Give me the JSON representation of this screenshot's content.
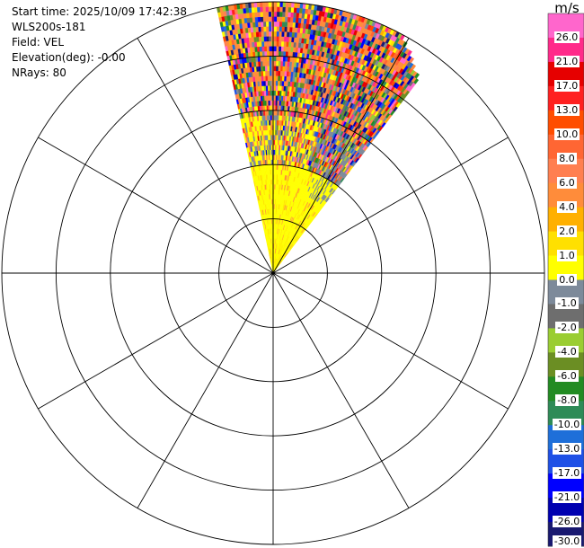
{
  "header": {
    "start_time": "Start time: 2025/10/09 17:42:38",
    "instrument": "WLS200s-181",
    "field": "Field: VEL",
    "elevation": "Elevation(deg): -0.00",
    "nrays": "NRays: 80"
  },
  "colorbar": {
    "unit": "m/s",
    "labels": [
      "26.0",
      "21.0",
      "17.0",
      "13.0",
      "10.0",
      "8.0",
      "6.0",
      "4.0",
      "2.0",
      "1.0",
      "0.0",
      "-1.0",
      "-2.0",
      "-4.0",
      "-6.0",
      "-8.0",
      "-10.0",
      "-13.0",
      "-17.0",
      "-21.0",
      "-26.0",
      "-30.0"
    ],
    "colors": [
      "#ff66cc",
      "#ff2a8a",
      "#e60000",
      "#ff2020",
      "#ff4d00",
      "#ff6633",
      "#ff7f50",
      "#ff8c3a",
      "#ffb000",
      "#ffe000",
      "#ffff00",
      "#7d8a9a",
      "#6e6e6e",
      "#9acd32",
      "#6b8e23",
      "#228b22",
      "#2e8b57",
      "#1e6fd9",
      "#1e50e6",
      "#0000ff",
      "#0000b0",
      "#191970"
    ]
  },
  "chart_data": {
    "type": "heatmap",
    "plot_kind": "PPI polar scan",
    "field": "VEL",
    "units": "m/s",
    "nrays": 80,
    "elevation_deg": -0.0,
    "sector_azimuth_deg": [
      -12,
      37
    ],
    "range_rings": 5,
    "radial_spokes_deg": [
      0,
      30,
      60,
      90,
      120,
      150,
      180,
      210,
      240,
      270,
      300,
      330
    ],
    "regions": [
      {
        "range_frac": [
          0.0,
          0.43
        ],
        "dominant_value": "2.0 to 4.0",
        "description_color": "yellow"
      },
      {
        "range_frac": [
          0.43,
          0.58
        ],
        "dominant_value": "mixed 0.0 to 13.0",
        "description_color": "yellow/orange/gray"
      },
      {
        "range_frac": [
          0.58,
          1.0
        ],
        "dominant_value": "noise -30.0 to 26.0",
        "description_color": "mixed"
      }
    ],
    "colorscale": {
      "min": -30.0,
      "max": 26.0
    }
  }
}
